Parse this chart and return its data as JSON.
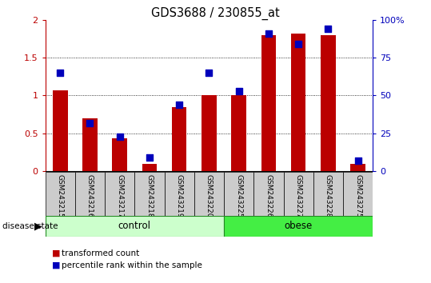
{
  "title": "GDS3688 / 230855_at",
  "samples": [
    "GSM243215",
    "GSM243216",
    "GSM243217",
    "GSM243218",
    "GSM243219",
    "GSM243220",
    "GSM243225",
    "GSM243226",
    "GSM243227",
    "GSM243228",
    "GSM243275"
  ],
  "transformed_count": [
    1.07,
    0.7,
    0.43,
    0.1,
    0.85,
    1.0,
    1.0,
    1.8,
    1.82,
    1.8,
    0.1
  ],
  "percentile_rank_pct": [
    65,
    32,
    23,
    9,
    44,
    65,
    53,
    91,
    84,
    94,
    7
  ],
  "groups": [
    {
      "label": "control",
      "start": 0,
      "end": 6,
      "color": "#ccffcc"
    },
    {
      "label": "obese",
      "start": 6,
      "end": 11,
      "color": "#44ee44"
    }
  ],
  "ylim_left": [
    0,
    2
  ],
  "ylim_right": [
    0,
    100
  ],
  "yticks_left": [
    0,
    0.5,
    1.0,
    1.5,
    2.0
  ],
  "ytick_labels_left": [
    "0",
    "0.5",
    "1",
    "1.5",
    "2"
  ],
  "yticks_right": [
    0,
    25,
    50,
    75,
    100
  ],
  "ytick_labels_right": [
    "0",
    "25",
    "50",
    "75",
    "100%"
  ],
  "bar_color": "#bb0000",
  "dot_color": "#0000bb",
  "legend_labels": [
    "transformed count",
    "percentile rank within the sample"
  ],
  "disease_state_label": "disease state",
  "dot_size": 30
}
